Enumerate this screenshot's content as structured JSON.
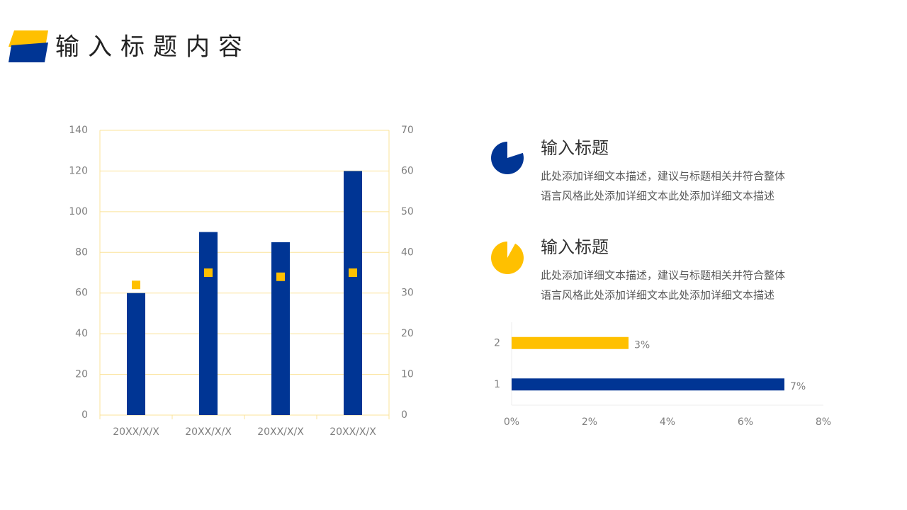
{
  "header": {
    "title": "输入标题内容"
  },
  "items": [
    {
      "title": "输入标题",
      "lines": [
        "此处添加详细文本描述，建议与标题相关并符合整体",
        "语言风格此处添加详细文本此处添加详细文本描述"
      ]
    },
    {
      "title": "输入标题",
      "lines": [
        "此处添加详细文本描述，建议与标题相关并符合整体",
        "语言风格此处添加详细文本此处添加详细文本描述"
      ]
    }
  ],
  "chart_data": [
    {
      "type": "combo",
      "categories": [
        "20XX/X/X",
        "20XX/X/X",
        "20XX/X/X",
        "20XX/X/X"
      ],
      "series": [
        {
          "kind": "bar",
          "color": "#003594",
          "values": [
            60,
            90,
            85,
            120
          ]
        },
        {
          "kind": "marker",
          "axis": "y2",
          "color": "#ffc000",
          "values": [
            32,
            35,
            34,
            35
          ]
        }
      ],
      "ylim": [
        0,
        140
      ],
      "yticks": [
        0,
        20,
        40,
        60,
        80,
        100,
        120,
        140
      ],
      "y2lim": [
        0,
        70
      ],
      "y2ticks": [
        0,
        10,
        20,
        30,
        40,
        50,
        60,
        70
      ],
      "grid": true,
      "grid_color": "#fbe39a"
    },
    {
      "type": "hbar",
      "categories": [
        "1",
        "2"
      ],
      "values": [
        7,
        3
      ],
      "value_labels": [
        "7%",
        "3%"
      ],
      "colors": [
        "#003594",
        "#ffc000"
      ],
      "xlim": [
        0,
        8
      ],
      "xticks": [
        {
          "value": 0,
          "label": "0%"
        },
        {
          "value": 2,
          "label": "2%"
        },
        {
          "value": 4,
          "label": "4%"
        },
        {
          "value": 6,
          "label": "6%"
        },
        {
          "value": 8,
          "label": "8%"
        }
      ]
    },
    {
      "type": "pie",
      "values": [
        20,
        80
      ],
      "colors": [
        "#ffffff",
        "#003594"
      ]
    },
    {
      "type": "pie",
      "values": [
        8,
        92
      ],
      "colors": [
        "#ffffff",
        "#ffc000"
      ]
    }
  ]
}
